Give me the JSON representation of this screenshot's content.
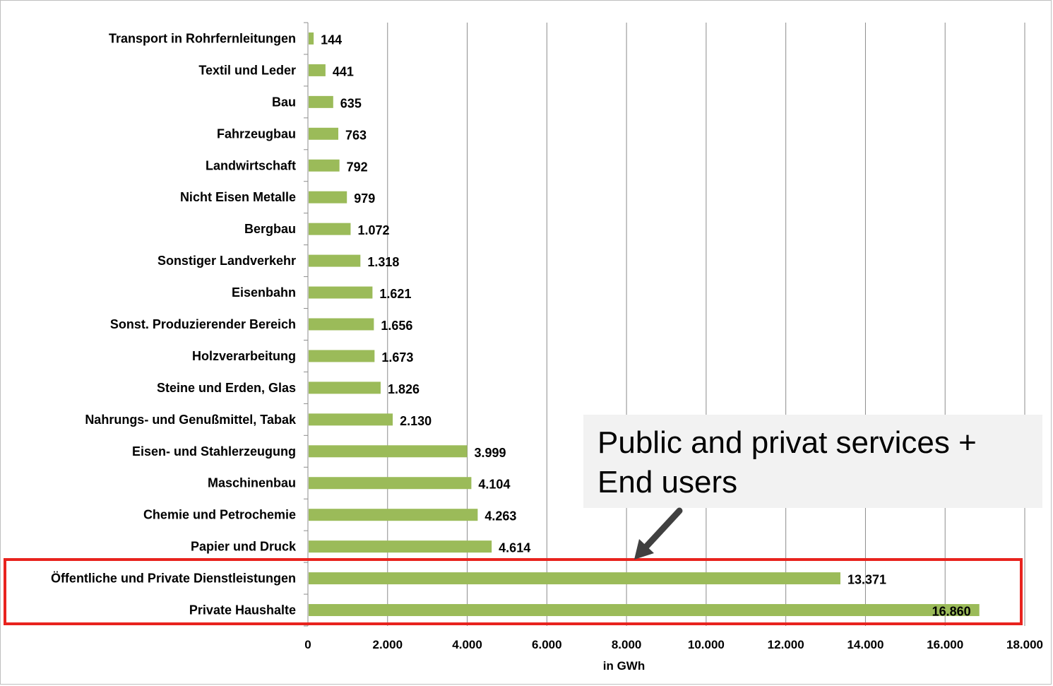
{
  "chart_data": {
    "type": "bar",
    "orientation": "horizontal",
    "categories": [
      "Transport in Rohrfernleitungen",
      "Textil und Leder",
      "Bau",
      "Fahrzeugbau",
      "Landwirtschaft",
      "Nicht Eisen Metalle",
      "Bergbau",
      "Sonstiger Landverkehr",
      "Eisenbahn",
      "Sonst. Produzierender Bereich",
      "Holzverarbeitung",
      "Steine und Erden, Glas",
      "Nahrungs- und Genußmittel, Tabak",
      "Eisen- und Stahlerzeugung",
      "Maschinenbau",
      "Chemie und  Petrochemie",
      "Papier und Druck",
      "Öffentliche und Private Dienstleistungen",
      "Private Haushalte"
    ],
    "values": [
      144,
      441,
      635,
      763,
      792,
      979,
      1072,
      1318,
      1621,
      1656,
      1673,
      1826,
      2130,
      3999,
      4104,
      4263,
      4614,
      13371,
      16860
    ],
    "value_labels": [
      "144",
      "441",
      "635",
      "763",
      "792",
      "979",
      "1.072",
      "1.318",
      "1.621",
      "1.656",
      "1.673",
      "1.826",
      "2.130",
      "3.999",
      "4.104",
      "4.263",
      "4.614",
      "13.371",
      "16.860"
    ],
    "xlabel": "in GWh",
    "xlim": [
      0,
      18000
    ],
    "xticks": [
      0,
      2000,
      4000,
      6000,
      8000,
      10000,
      12000,
      14000,
      16000,
      18000
    ],
    "xtick_labels": [
      "0",
      "2.000",
      "4.000",
      "6.000",
      "8.000",
      "10.000",
      "12.000",
      "14.000",
      "16.000",
      "18.000"
    ],
    "grid": "vertical",
    "bar_color": "#9bbb59",
    "annotation": {
      "text_line1": "Public and privat services +",
      "text_line2": "End users",
      "highlight_color": "#e8231e",
      "highlighted_categories": [
        "Öffentliche und Private Dienstleistungen",
        "Private Haushalte"
      ]
    }
  }
}
